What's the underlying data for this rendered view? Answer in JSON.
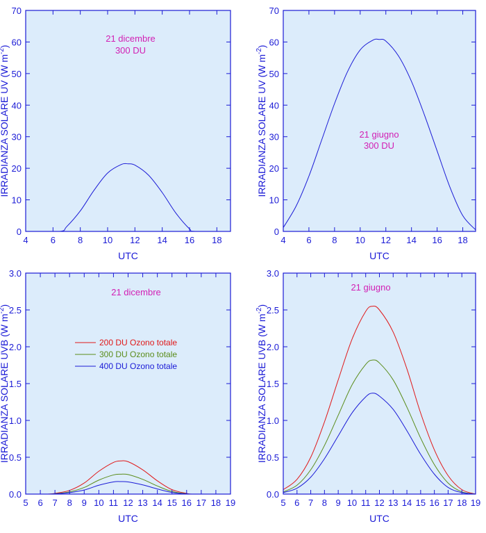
{
  "chart_data": [
    {
      "type": "line",
      "panel": "top-left",
      "title": "",
      "xlabel": "UTC",
      "ylabel": "IRRADIANZA SOLARE UV (W m",
      "ylabel_sup": "-2",
      "ylabel_end": ")",
      "xlim": [
        4,
        19
      ],
      "ylim": [
        0,
        70
      ],
      "xticks": [
        "4",
        "6",
        "8",
        "10",
        "12",
        "14",
        "16",
        "18"
      ],
      "yticks": [
        "0",
        "10",
        "20",
        "30",
        "40",
        "50",
        "60",
        "70"
      ],
      "annotation_lines": [
        "21 dicembre",
        "300 DU"
      ],
      "series": [
        {
          "name": "300 DU",
          "color": "#1a1ad6",
          "x": [
            4,
            6.5,
            7,
            8,
            9,
            10,
            11,
            11.5,
            12,
            13,
            14,
            15,
            16,
            16.4,
            19
          ],
          "values": [
            0,
            0,
            1.5,
            6.5,
            13,
            18.5,
            21.2,
            21.4,
            21,
            17.8,
            12.3,
            5.8,
            0.8,
            0,
            0
          ]
        }
      ]
    },
    {
      "type": "line",
      "panel": "top-right",
      "title": "",
      "xlabel": "UTC",
      "ylabel": "IRRADIANZA SOLARE UV (W m",
      "ylabel_sup": "-2",
      "ylabel_end": ")",
      "xlim": [
        4,
        19
      ],
      "ylim": [
        0,
        70
      ],
      "xticks": [
        "4",
        "6",
        "8",
        "10",
        "12",
        "14",
        "16",
        "18"
      ],
      "yticks": [
        "0",
        "10",
        "20",
        "30",
        "40",
        "50",
        "60",
        "70"
      ],
      "annotation_lines": [
        "21 giugno",
        "300 DU"
      ],
      "series": [
        {
          "name": "300 DU",
          "color": "#1a1ad6",
          "x": [
            4,
            5,
            6,
            7,
            8,
            9,
            10,
            11,
            11.5,
            12,
            13,
            14,
            15,
            16,
            17,
            18,
            19
          ],
          "values": [
            1.2,
            8,
            17.5,
            29,
            40.5,
            50.5,
            57.5,
            60.6,
            60.8,
            60.3,
            55.5,
            47.5,
            37,
            25.5,
            14,
            5,
            0.5
          ]
        }
      ]
    },
    {
      "type": "line",
      "panel": "bottom-left",
      "title": "",
      "xlabel": "UTC",
      "ylabel": "IRRADIANZA SOLARE UVB (W m",
      "ylabel_sup": "-2",
      "ylabel_end": ")",
      "xlim": [
        5,
        19
      ],
      "ylim": [
        0,
        3.0
      ],
      "xticks": [
        "5",
        "6",
        "7",
        "8",
        "9",
        "10",
        "11",
        "12",
        "13",
        "14",
        "15",
        "16",
        "17",
        "18",
        "19"
      ],
      "yticks": [
        "0.0",
        "0.5",
        "1.0",
        "1.5",
        "2.0",
        "2.5",
        "3.0"
      ],
      "annotation_lines": [
        "21 dicembre"
      ],
      "legend": [
        "200 DU Ozono totale",
        "300 DU Ozono totale",
        "400 DU Ozono totale"
      ],
      "series": [
        {
          "name": "200 DU Ozono totale",
          "color": "#e01818",
          "x": [
            5,
            6.5,
            7,
            8,
            9,
            10,
            11,
            11.5,
            12,
            13,
            14,
            15,
            16,
            16.5,
            19
          ],
          "values": [
            0,
            0,
            0.01,
            0.05,
            0.15,
            0.31,
            0.43,
            0.45,
            0.44,
            0.33,
            0.18,
            0.06,
            0.01,
            0,
            0
          ]
        },
        {
          "name": "300 DU Ozono totale",
          "color": "#5a8c1a",
          "x": [
            5,
            6.5,
            7,
            8,
            9,
            10,
            11,
            11.5,
            12,
            13,
            14,
            15,
            16,
            16.5,
            19
          ],
          "values": [
            0,
            0,
            0.005,
            0.03,
            0.09,
            0.19,
            0.26,
            0.27,
            0.265,
            0.2,
            0.11,
            0.035,
            0.005,
            0,
            0
          ]
        },
        {
          "name": "400 DU Ozono totale",
          "color": "#1a1ad6",
          "x": [
            5,
            6.5,
            7,
            8,
            9,
            10,
            11,
            11.5,
            12,
            13,
            14,
            15,
            16,
            16.5,
            19
          ],
          "values": [
            0,
            0,
            0.003,
            0.02,
            0.055,
            0.12,
            0.165,
            0.17,
            0.165,
            0.125,
            0.07,
            0.022,
            0.003,
            0,
            0
          ]
        }
      ]
    },
    {
      "type": "line",
      "panel": "bottom-right",
      "title": "",
      "xlabel": "UTC",
      "ylabel": "IRRADIANZA SOLARE UVB (W m",
      "ylabel_sup": "-2",
      "ylabel_end": ")",
      "xlim": [
        5,
        19
      ],
      "ylim": [
        0,
        3.0
      ],
      "xticks": [
        "5",
        "6",
        "7",
        "8",
        "9",
        "10",
        "11",
        "12",
        "13",
        "14",
        "15",
        "16",
        "17",
        "18",
        "19"
      ],
      "yticks": [
        "0.0",
        "0.5",
        "1.0",
        "1.5",
        "2.0",
        "2.5",
        "3.0"
      ],
      "annotation_lines": [
        "21 giugno"
      ],
      "series": [
        {
          "name": "200 DU Ozono totale",
          "color": "#e01818",
          "x": [
            5,
            6,
            7,
            8,
            9,
            10,
            11,
            11.5,
            12,
            13,
            14,
            15,
            16,
            17,
            18,
            19
          ],
          "values": [
            0.06,
            0.2,
            0.5,
            0.98,
            1.55,
            2.1,
            2.48,
            2.55,
            2.5,
            2.2,
            1.7,
            1.1,
            0.6,
            0.25,
            0.06,
            0
          ]
        },
        {
          "name": "300 DU Ozono totale",
          "color": "#5a8c1a",
          "x": [
            5,
            6,
            7,
            8,
            9,
            10,
            11,
            11.5,
            12,
            13,
            14,
            15,
            16,
            17,
            18,
            19
          ],
          "values": [
            0.03,
            0.12,
            0.33,
            0.66,
            1.07,
            1.48,
            1.76,
            1.82,
            1.78,
            1.55,
            1.18,
            0.76,
            0.4,
            0.15,
            0.03,
            0
          ]
        },
        {
          "name": "400 DU Ozono totale",
          "color": "#1a1ad6",
          "x": [
            5,
            6,
            7,
            8,
            9,
            10,
            11,
            11.5,
            12,
            13,
            14,
            15,
            16,
            17,
            18,
            19
          ],
          "values": [
            0.02,
            0.08,
            0.23,
            0.48,
            0.79,
            1.1,
            1.32,
            1.37,
            1.33,
            1.15,
            0.86,
            0.54,
            0.27,
            0.09,
            0.02,
            0
          ]
        }
      ]
    }
  ]
}
